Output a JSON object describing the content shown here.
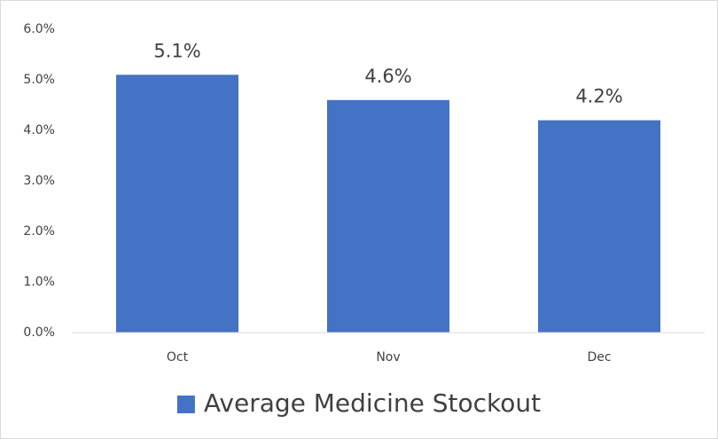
{
  "chart_data": {
    "type": "bar",
    "categories": [
      "Oct",
      "Nov",
      "Dec"
    ],
    "series": [
      {
        "name": "Average Medicine Stockout",
        "color": "#4472c4",
        "values": [
          5.1,
          4.6,
          4.2
        ],
        "value_labels": [
          "5.1%",
          "4.6%",
          "4.2%"
        ]
      }
    ],
    "ylim": [
      0,
      6
    ],
    "yticks": [
      {
        "value": 0,
        "label": "0.0%"
      },
      {
        "value": 1,
        "label": "1.0%"
      },
      {
        "value": 2,
        "label": "2.0%"
      },
      {
        "value": 3,
        "label": "3.0%"
      },
      {
        "value": 4,
        "label": "4.0%"
      },
      {
        "value": 5,
        "label": "5.0%"
      },
      {
        "value": 6,
        "label": "6.0%"
      }
    ],
    "grid": false,
    "legend": "bottom"
  }
}
